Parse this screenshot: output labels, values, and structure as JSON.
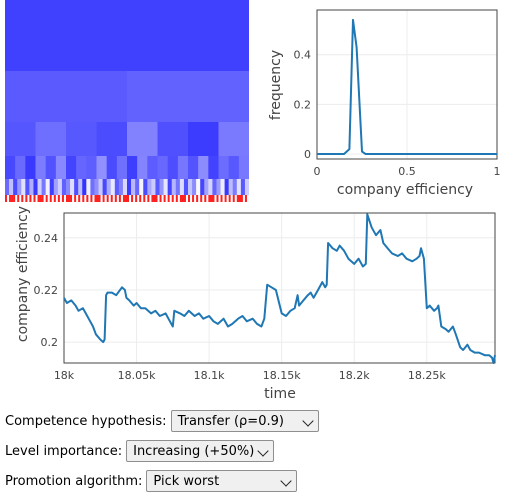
{
  "hierarchy": {
    "levels": [
      {
        "cells": [
          "#4040ff"
        ]
      },
      {
        "cells": [
          "#5a5aff",
          "#6262ff"
        ]
      },
      {
        "cells": [
          "#5656ff",
          "#6e6eff",
          "#5858ff",
          "#4c4cff",
          "#8282ff",
          "#5050ff",
          "#3c3cff",
          "#7a7aff"
        ]
      },
      {
        "cells": [
          "#4848ff",
          "#6a6aff",
          "#3a3aff",
          "#7c7cff",
          "#5252ff",
          "#8888ff",
          "#4444ff",
          "#6666ff",
          "#5e5eff",
          "#9090ff",
          "#4a4aff",
          "#7070ff",
          "#3e3eff",
          "#8484ff",
          "#5c5cff",
          "#6868ff",
          "#4e4eff",
          "#7676ff",
          "#5454ff",
          "#8c8cff",
          "#4242ff",
          "#6c6cff",
          "#5858ff",
          "#7878ff"
        ]
      },
      {
        "cells": [
          "#6a6aff",
          "#c0c0ff",
          "#4a4aff",
          "#9999ff",
          "#e0e0ff",
          "#5555ff",
          "#b0b0ff",
          "#3a3aff",
          "#d0d0ff",
          "#7777ff",
          "#f0f0ff",
          "#4040ff",
          "#a0a0ff",
          "#cfcfff",
          "#6060ff",
          "#8888ff",
          "#ddddff",
          "#5050ff",
          "#bbbbff",
          "#3333ff",
          "#eeeeff",
          "#7070ff",
          "#9090ff",
          "#c8c8ff",
          "#4848ff",
          "#aaaaff",
          "#e8e8ff",
          "#5c5cff",
          "#8080ff",
          "#d8d8ff",
          "#3c3cff",
          "#b8b8ff",
          "#6868ff",
          "#f4f4ff",
          "#4c4cff",
          "#a8a8ff",
          "#cacaff",
          "#5858ff",
          "#9494ff",
          "#e4e4ff",
          "#4444ff",
          "#b4b4ff",
          "#7474ff",
          "#dcdcff",
          "#5252ff",
          "#c4c4ff",
          "#8c8cff",
          "#f8f8ff",
          "#4646ff",
          "#a4a4ff",
          "#d4d4ff",
          "#6464ff",
          "#9c9cff",
          "#ececff",
          "#3838ff",
          "#bcbcff",
          "#7c7cff",
          "#e2e2ff",
          "#5a5aff",
          "#ccccff"
        ]
      }
    ],
    "bottom_colors": [
      "#ff2020",
      "#ffffff"
    ]
  },
  "histogram": {
    "ylabel": "frequency",
    "xlabel": "company efficiency",
    "xlim": [
      0,
      1
    ],
    "ylim": [
      -0.02,
      0.58
    ],
    "xticks": [
      {
        "v": 0,
        "label": "0"
      },
      {
        "v": 0.5,
        "label": "0.5"
      },
      {
        "v": 1,
        "label": "1"
      }
    ],
    "yticks": [
      {
        "v": 0,
        "label": "0"
      },
      {
        "v": 0.2,
        "label": "0.2"
      },
      {
        "v": 0.4,
        "label": "0.4"
      }
    ],
    "x": [
      0,
      0.05,
      0.1,
      0.15,
      0.18,
      0.2,
      0.22,
      0.25,
      0.27,
      0.3,
      0.35,
      0.4,
      0.5,
      0.6,
      0.7,
      0.8,
      0.9,
      1.0
    ],
    "y": [
      0,
      0,
      0,
      0,
      0.02,
      0.54,
      0.43,
      0.01,
      0,
      0,
      0,
      0,
      0,
      0,
      0,
      0,
      0,
      0
    ],
    "color": "#1f77b4"
  },
  "timeseries": {
    "ylabel": "company efficiency",
    "xlabel": "time",
    "xlim": [
      18000,
      18297
    ],
    "ylim": [
      0.192,
      0.2495
    ],
    "xticks": [
      {
        "v": 18000,
        "label": "18k"
      },
      {
        "v": 18050,
        "label": "18.05k"
      },
      {
        "v": 18100,
        "label": "18.1k"
      },
      {
        "v": 18150,
        "label": "18.15k"
      },
      {
        "v": 18200,
        "label": "18.2k"
      },
      {
        "v": 18250,
        "label": "18.25k"
      }
    ],
    "yticks": [
      {
        "v": 0.2,
        "label": "0.2"
      },
      {
        "v": 0.22,
        "label": "0.22"
      },
      {
        "v": 0.24,
        "label": "0.24"
      }
    ],
    "x": [
      18000,
      18002,
      18005,
      18008,
      18010,
      18013,
      18015,
      18017,
      18020,
      18022,
      18025,
      18026,
      18027,
      18028,
      18029,
      18030,
      18033,
      18036,
      18040,
      18042,
      18043,
      18045,
      18048,
      18050,
      18053,
      18056,
      18060,
      18063,
      18066,
      18070,
      18073,
      18075,
      18076,
      18080,
      18083,
      18086,
      18090,
      18093,
      18096,
      18100,
      18103,
      18106,
      18110,
      18113,
      18116,
      18120,
      18123,
      18126,
      18130,
      18133,
      18136,
      18138,
      18140,
      18143,
      18146,
      18150,
      18153,
      18156,
      18159,
      18161,
      18162,
      18165,
      18168,
      18170,
      18172,
      18175,
      18178,
      18180,
      18181,
      18182,
      18185,
      18188,
      18190,
      18193,
      18196,
      18200,
      18203,
      18206,
      18208,
      18209,
      18212,
      18215,
      18218,
      18220,
      18223,
      18226,
      18230,
      18233,
      18236,
      18240,
      18243,
      18245,
      18246,
      18248,
      18250,
      18252,
      18255,
      18257,
      18258,
      18260,
      18263,
      18265,
      18268,
      18270,
      18273,
      18275,
      18278,
      18280,
      18283,
      18286,
      18290,
      18293,
      18295,
      18296,
      18297
    ],
    "y": [
      0.217,
      0.215,
      0.216,
      0.214,
      0.212,
      0.213,
      0.211,
      0.209,
      0.206,
      0.203,
      0.201,
      0.2005,
      0.2,
      0.201,
      0.218,
      0.219,
      0.219,
      0.218,
      0.221,
      0.22,
      0.217,
      0.216,
      0.214,
      0.215,
      0.213,
      0.213,
      0.211,
      0.212,
      0.21,
      0.211,
      0.208,
      0.206,
      0.212,
      0.211,
      0.21,
      0.212,
      0.21,
      0.211,
      0.209,
      0.21,
      0.208,
      0.207,
      0.209,
      0.206,
      0.207,
      0.209,
      0.21,
      0.208,
      0.209,
      0.207,
      0.206,
      0.209,
      0.222,
      0.221,
      0.22,
      0.211,
      0.21,
      0.212,
      0.213,
      0.218,
      0.214,
      0.216,
      0.218,
      0.219,
      0.217,
      0.22,
      0.223,
      0.221,
      0.222,
      0.238,
      0.236,
      0.235,
      0.237,
      0.235,
      0.232,
      0.23,
      0.232,
      0.229,
      0.23,
      0.249,
      0.244,
      0.241,
      0.243,
      0.238,
      0.236,
      0.234,
      0.233,
      0.234,
      0.232,
      0.231,
      0.232,
      0.233,
      0.236,
      0.232,
      0.213,
      0.214,
      0.212,
      0.213,
      0.214,
      0.206,
      0.205,
      0.204,
      0.206,
      0.203,
      0.198,
      0.197,
      0.199,
      0.197,
      0.196,
      0.196,
      0.195,
      0.195,
      0.194,
      0.192,
      0.195
    ],
    "color": "#1f77b4"
  },
  "controls": [
    {
      "label": "Competence hypothesis:",
      "value": "Transfer (ρ=0.9)"
    },
    {
      "label": "Level importance:",
      "value": "Increasing (+50%)"
    },
    {
      "label": "Promotion algorithm:",
      "value": "Pick worst"
    }
  ]
}
